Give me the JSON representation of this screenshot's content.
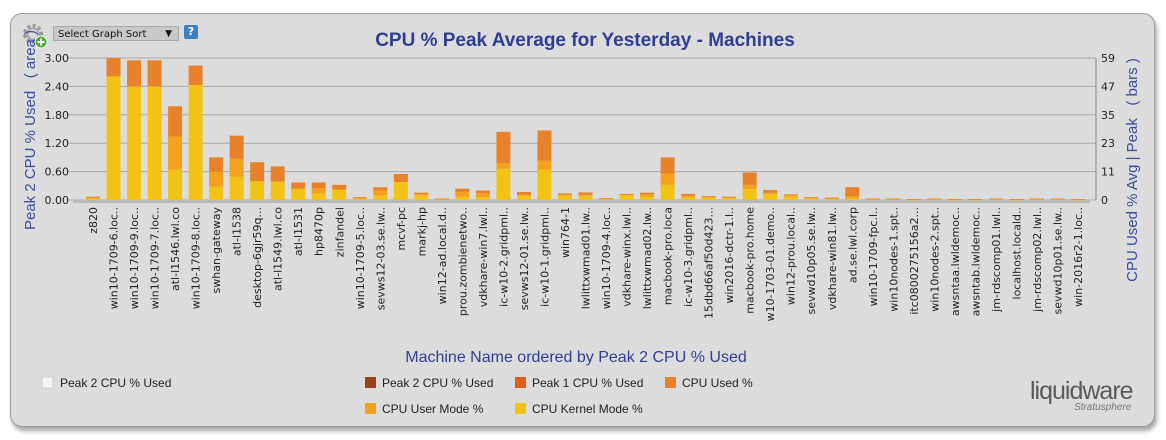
{
  "toolbar": {
    "sort_label": "Select Graph Sort",
    "help_label": "?"
  },
  "colors": {
    "kernel": "#f2c314",
    "user": "#f4a11e",
    "used": "#e8822a",
    "peak2": "#9a4419",
    "peak1": "#e0601a",
    "peak2_area": "#f4f4f4",
    "title": "#2e3f92"
  },
  "chart_data": {
    "type": "bar",
    "title": "CPU % Peak Average for Yesterday - Machines",
    "xlabel": "Machine Name ordered by Peak 2 CPU % Used",
    "ylabel": "Peak 2 CPU % Used   ( area )",
    "y2label": "CPU Used % Avg | Peak   ( bars )",
    "ylim": [
      0,
      3.0
    ],
    "yticks": [
      "0.00",
      "0.60",
      "1.20",
      "1.80",
      "2.40",
      "3.00"
    ],
    "y2ticks": [
      "0",
      "11",
      "23",
      "35",
      "47",
      "59"
    ],
    "grid": true,
    "categories": [
      "z820",
      "win10-1709-6.loc..",
      "win10-1709-9.loc..",
      "win10-1709-7.loc..",
      "atl-l1546.lwl.co",
      "win10-1709-8.loc..",
      "swhan-gateway",
      "atl-l1538",
      "desktop-6gjr59q...",
      "atl-l1549.lwl.co",
      "atl-l1531",
      "hp8470p",
      "zinfandel",
      "win10-1709-5.loc..",
      "sevws12-03.se.lw..",
      "mcvf-pc",
      "markj-hp",
      "win12-ad.local.d..",
      "prou.zombienetwo..",
      "vdkhare-win7.lwl..",
      "ic-w10-2.gridpml..",
      "sevws12-01.se.lw..",
      "ic-w10-1.gridpml..",
      "win764-1",
      "lwlittxwmad01.lw..",
      "win10-1709-4.loc..",
      "vdkhare-winx.lwl..",
      "lwlittxwmad02.lw..",
      "macbook-pro.loca",
      "ic-w10-3.gridpml..",
      "15dbd66af50d423...",
      "win2016-dctr-1.l..",
      "macbook-pro.home",
      "w10-1703-01.demo..",
      "win12-prou.local..",
      "sevwd10p05.se.lw..",
      "vdkhare-win81.lw..",
      "ad.se.lwl.corp",
      "win10-1709-fpc.l..",
      "win10nodes-1.spt..",
      "itc0800275156a2...",
      "win10nodes-2.spt..",
      "awsntaa.lwldemoc..",
      "awsntab.lwldemoc..",
      "jm-rdscomp01.lwl..",
      "localhost.locald..",
      "jm-rdscomp02.lwl..",
      "sevwd10p01.se.lw..",
      "win-2016r2-1.loc.."
    ],
    "series": [
      {
        "name": "CPU Kernel Mode %",
        "values": [
          0.03,
          2.61,
          2.4,
          2.4,
          0.64,
          2.43,
          0.28,
          0.49,
          0.4,
          0.39,
          0.24,
          0.14,
          0.22,
          0.03,
          0.1,
          0.38,
          0.1,
          0.02,
          0.07,
          0.06,
          0.66,
          0.09,
          0.64,
          0.09,
          0.09,
          0.03,
          0.1,
          0.07,
          0.32,
          0.06,
          0.05,
          0.04,
          0.23,
          0.13,
          0.07,
          0.03,
          0.03,
          0.03,
          0.02,
          0.02,
          0.01,
          0.02,
          0.01,
          0.01,
          0.02,
          0.01,
          0.02,
          0.02,
          0.01
        ]
      },
      {
        "name": "CPU User Mode %",
        "values": [
          0.02,
          0,
          0,
          0,
          0.7,
          0,
          0.32,
          0.38,
          0,
          0,
          0,
          0.11,
          0,
          0.01,
          0.1,
          0,
          0.02,
          0.005,
          0.1,
          0.08,
          0.12,
          0.02,
          0.19,
          0.02,
          0.02,
          0.005,
          0.02,
          0.05,
          0.24,
          0.03,
          0.02,
          0.02,
          0.09,
          0.02,
          0.03,
          0.02,
          0.01,
          0.05,
          0.005,
          0.005,
          0.005,
          0.005,
          0.005,
          0.005,
          0.005,
          0.005,
          0.005,
          0.005,
          0.005
        ]
      },
      {
        "name": "CPU Used %",
        "values": [
          0.02,
          0.39,
          0.55,
          0.55,
          0.64,
          0.41,
          0.3,
          0.49,
          0.4,
          0.32,
          0.13,
          0.12,
          0.1,
          0.02,
          0.07,
          0.17,
          0.035,
          0.005,
          0.07,
          0.06,
          0.66,
          0.06,
          0.64,
          0.03,
          0.05,
          0.005,
          0.01,
          0.035,
          0.34,
          0.04,
          0.015,
          0.01,
          0.26,
          0.06,
          0.02,
          0.01,
          0.01,
          0.19,
          0.005,
          0.005,
          0.005,
          0.005,
          0.005,
          0.005,
          0.005,
          0.005,
          0.005,
          0.005,
          0.005
        ]
      }
    ],
    "legend": [
      "Peak 2 CPU % Used",
      "Peak 2 CPU % Used",
      "Peak 1 CPU % Used",
      "CPU Used %",
      "CPU User Mode %",
      "CPU Kernel Mode %"
    ],
    "legend_position": "bottom"
  },
  "logo": {
    "brand": "liquidware",
    "product": "Stratusphere"
  }
}
